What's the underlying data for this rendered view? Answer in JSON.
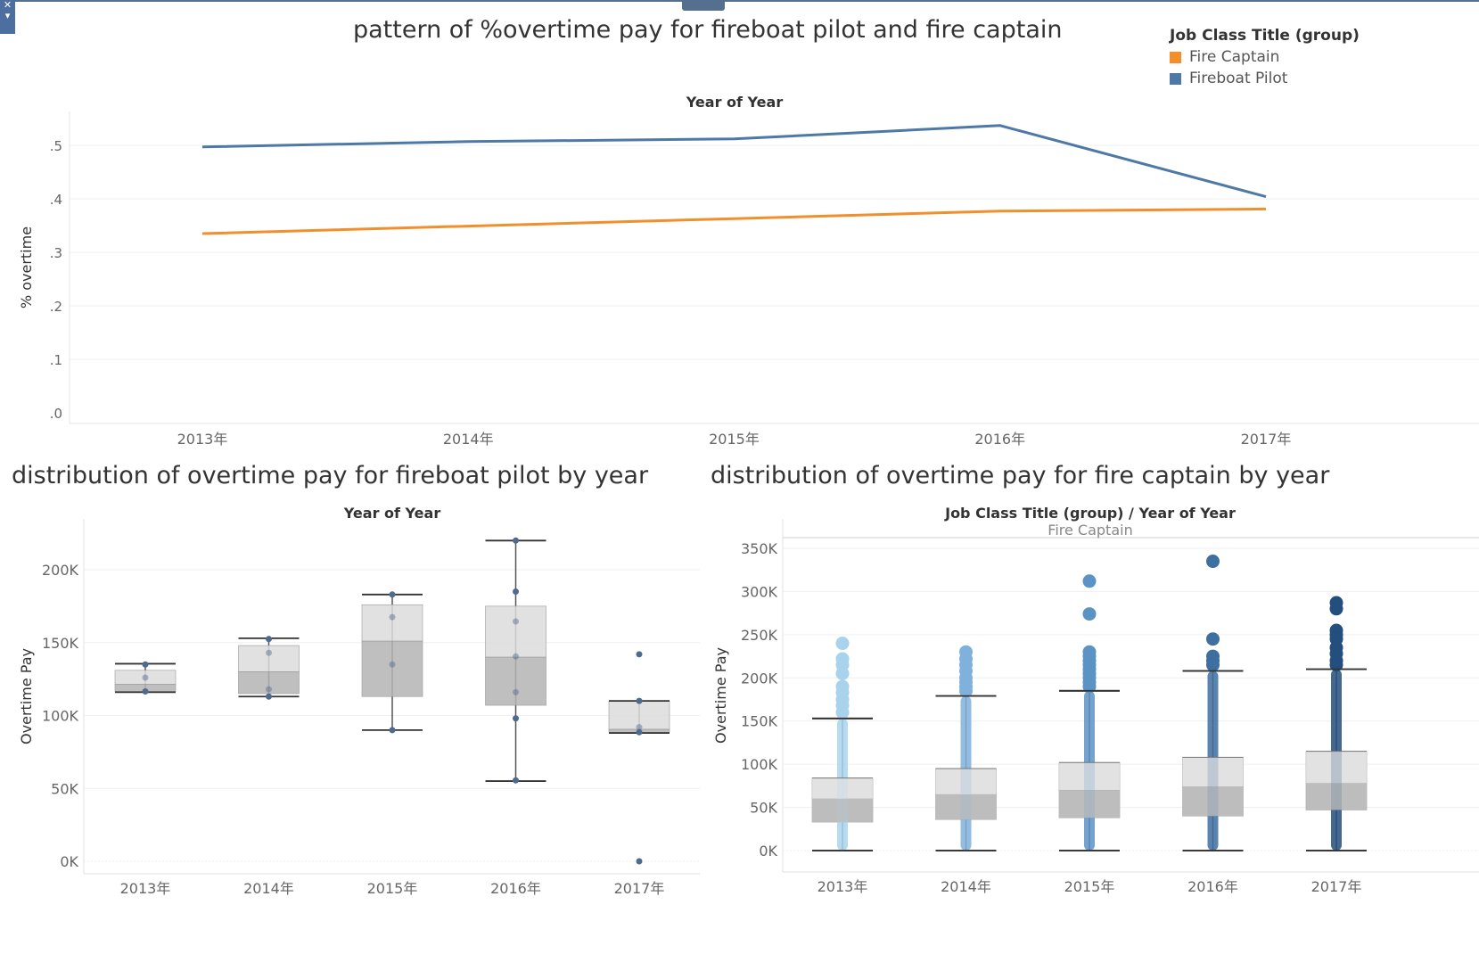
{
  "page": {
    "titles": {
      "top": "pattern of %overtime pay for fireboat pilot and fire captain",
      "bottom_left": "distribution of overtime pay for fireboat pilot by year",
      "bottom_right": "distribution of overtime pay for fire captain by year"
    },
    "legend": {
      "title": "Job Class Title (group)",
      "items": [
        {
          "label": "Fire Captain",
          "color": "#f28e2b"
        },
        {
          "label": "Fireboat Pilot",
          "color": "#4e79a7"
        }
      ]
    },
    "corner_icons": [
      "close-icon",
      "chevron-down-icon"
    ]
  },
  "chart_data": [
    {
      "type": "line",
      "title": "pattern of %overtime pay for fireboat pilot and fire captain",
      "column_header": "Year of Year",
      "xlabel": "",
      "ylabel": "% overtime",
      "categories": [
        "2013年",
        "2014年",
        "2015年",
        "2016年",
        "2017年"
      ],
      "yticks": [
        ".0",
        ".1",
        ".2",
        ".3",
        ".4",
        ".5"
      ],
      "ylim": [
        0,
        0.55
      ],
      "series": [
        {
          "name": "Fireboat Pilot",
          "color": "#4e79a7",
          "values": [
            0.497,
            0.507,
            0.512,
            0.537,
            0.404
          ]
        },
        {
          "name": "Fire Captain",
          "color": "#f28e2b",
          "values": [
            0.335,
            0.349,
            0.363,
            0.377,
            0.381
          ]
        }
      ],
      "grid": true,
      "legend": "top-right"
    },
    {
      "type": "box",
      "title": "distribution of overtime pay for fireboat pilot by year",
      "column_header": "Year of Year",
      "ylabel": "Overtime Pay",
      "categories": [
        "2013年",
        "2014年",
        "2015年",
        "2016年",
        "2017年"
      ],
      "yticks": [
        {
          "value": 0,
          "label": "0K"
        },
        {
          "value": 50000,
          "label": "50K"
        },
        {
          "value": 100000,
          "label": "100K"
        },
        {
          "value": 150000,
          "label": "150K"
        },
        {
          "value": 200000,
          "label": "200K"
        }
      ],
      "ylim": [
        -8000,
        232000
      ],
      "point_color": "#4e6a8d",
      "boxes": [
        {
          "category": "2013年",
          "min": 116000,
          "q1": 116500,
          "median": 121500,
          "q3": 131000,
          "max": 135500,
          "points": [
            135000,
            126000,
            116500
          ]
        },
        {
          "category": "2014年",
          "min": 113000,
          "q1": 115000,
          "median": 130000,
          "q3": 148000,
          "max": 153000,
          "points": [
            152500,
            143000,
            118000,
            113000
          ]
        },
        {
          "category": "2015年",
          "min": 90000,
          "q1": 113000,
          "median": 151000,
          "q3": 176000,
          "max": 183000,
          "points": [
            183000,
            167500,
            135000,
            90000
          ]
        },
        {
          "category": "2016年",
          "min": 55000,
          "q1": 107000,
          "median": 140000,
          "q3": 175000,
          "max": 220000,
          "points": [
            220000,
            185000,
            164500,
            140500,
            116000,
            98000,
            55500
          ]
        },
        {
          "category": "2017年",
          "min": 88000,
          "q1": 88500,
          "median": 90500,
          "q3": 110000,
          "max": 110000,
          "points": [
            142000,
            110000,
            92000,
            88500,
            0
          ]
        }
      ]
    },
    {
      "type": "box",
      "title": "distribution of overtime pay for fire captain by year",
      "column_header": "Job Class Title (group)  /  Year of Year",
      "pane_label": "Fire Captain",
      "ylabel": "Overtime Pay",
      "categories": [
        "2013年",
        "2014年",
        "2015年",
        "2016年",
        "2017年"
      ],
      "yticks": [
        {
          "value": 0,
          "label": "0K"
        },
        {
          "value": 50000,
          "label": "50K"
        },
        {
          "value": 100000,
          "label": "100K"
        },
        {
          "value": 150000,
          "label": "150K"
        },
        {
          "value": 200000,
          "label": "200K"
        },
        {
          "value": 250000,
          "label": "250K"
        },
        {
          "value": 300000,
          "label": "300K"
        },
        {
          "value": 350000,
          "label": "350K"
        }
      ],
      "ylim": [
        -25000,
        365000
      ],
      "boxes": [
        {
          "category": "2013年",
          "color": "#a9d3ec",
          "min": 0,
          "q1": 33000,
          "median": 60000,
          "q3": 84000,
          "max": 153000,
          "outliers": [
            240000,
            222000,
            215000,
            205000,
            190000,
            183000,
            175000,
            168000,
            160000
          ]
        },
        {
          "category": "2014年",
          "color": "#7fb1dc",
          "min": 0,
          "q1": 36000,
          "median": 65000,
          "q3": 95000,
          "max": 179000,
          "outliers": [
            230000,
            222000,
            215000,
            208000,
            200000,
            195000,
            190000,
            185000
          ]
        },
        {
          "category": "2015年",
          "color": "#5b93c5",
          "min": 0,
          "q1": 38000,
          "median": 70000,
          "q3": 102000,
          "max": 185000,
          "outliers": [
            312000,
            274000,
            230000,
            225000,
            220000,
            215000,
            210000,
            205000,
            200000,
            195000,
            190000
          ]
        },
        {
          "category": "2016年",
          "color": "#3d6fa0",
          "min": 0,
          "q1": 40000,
          "median": 74000,
          "q3": 108000,
          "max": 208000,
          "outliers": [
            335000,
            245000,
            225000,
            220000,
            215000
          ]
        },
        {
          "category": "2017年",
          "color": "#234e7d",
          "min": 0,
          "q1": 47000,
          "median": 78000,
          "q3": 115000,
          "max": 210000,
          "outliers": [
            287000,
            280000,
            255000,
            250000,
            245000,
            235000,
            228000,
            220000,
            215000
          ]
        }
      ]
    }
  ]
}
